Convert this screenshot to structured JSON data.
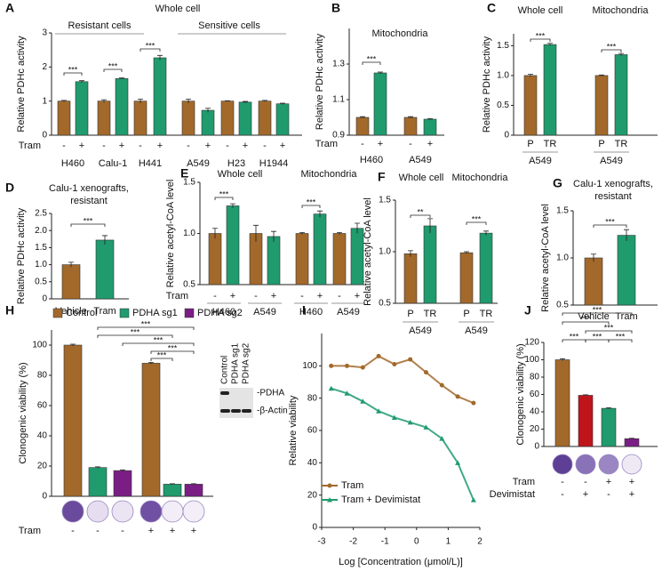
{
  "chart_data": [
    {
      "panel": "A",
      "type": "bar",
      "title": "Whole cell",
      "subtitles": [
        "Resistant cells",
        "Sensitive cells"
      ],
      "subtitle_colors": [
        "#1f9b6e",
        "#a2692b"
      ],
      "y_label": "Relative PDHc activity",
      "ylim": [
        0,
        3
      ],
      "yticks": [
        0,
        1,
        2,
        3
      ],
      "values": [
        1,
        1.57,
        1,
        1.66,
        1,
        2.27,
        1,
        0.73,
        1,
        0.97,
        1,
        0.92
      ],
      "errors": [
        0.02,
        0.03,
        0.04,
        0.02,
        0.06,
        0.07,
        0.06,
        0.06,
        0.01,
        0.02,
        0.02,
        0.02
      ],
      "colors": [
        "#a2692b",
        "#1f9b6e",
        "#a2692b",
        "#1f9b6e",
        "#a2692b",
        "#1f9b6e",
        "#a2692b",
        "#1f9b6e",
        "#a2692b",
        "#1f9b6e",
        "#a2692b",
        "#1f9b6e"
      ],
      "rows": [
        {
          "label": "Tram",
          "values": [
            "-",
            "+",
            "-",
            "+",
            "-",
            "+",
            "-",
            "+",
            "-",
            "+",
            "-",
            "+"
          ]
        }
      ],
      "groups": [
        "H460",
        "Calu-1",
        "H441",
        "A549",
        "H23",
        "H1944"
      ],
      "group_colors": [
        "#1f9b6e",
        "#1f9b6e",
        "#1f9b6e",
        "#a2692b",
        "#a2692b",
        "#a2692b"
      ],
      "annotations": [
        "***",
        "***",
        "***"
      ]
    },
    {
      "panel": "B",
      "type": "bar",
      "title": "Mitochondria",
      "y_label": "Relative PDHc activity",
      "ylim": [
        0.9,
        1.5
      ],
      "yticks": [
        0.9,
        1.1,
        1.3
      ],
      "values": [
        1,
        1.25,
        1,
        0.99
      ],
      "errors": [
        0.004,
        0.005,
        0.004,
        0.003
      ],
      "colors": [
        "#a2692b",
        "#1f9b6e",
        "#a2692b",
        "#1f9b6e"
      ],
      "rows": [
        {
          "label": "Tram",
          "values": [
            "-",
            "+",
            "-",
            "+"
          ]
        }
      ],
      "groups": [
        "H460",
        "A549"
      ],
      "group_colors": [
        "#1f9b6e",
        "#a2692b"
      ],
      "annotations": [
        "***"
      ]
    },
    {
      "panel": "C",
      "type": "bar",
      "titles": [
        "Whole cell",
        "Mitochondria"
      ],
      "y_label": "Relative PDHc activity",
      "ylim": [
        0,
        1.7
      ],
      "yticks": [
        0,
        0.5,
        {
          "value": 1,
          "label": "1.0"
        },
        1.5
      ],
      "values": [
        1,
        1.52,
        1,
        1.35
      ],
      "errors": [
        0.02,
        0.02,
        0.01,
        0.02
      ],
      "colors": [
        "#a2692b",
        "#1f9b6e",
        "#a2692b",
        "#1f9b6e"
      ],
      "categories": [
        "P",
        "TR",
        "P",
        "TR"
      ],
      "groups": [
        "A549",
        "A549"
      ],
      "group_colors": [
        "#a2692b",
        "#a2692b"
      ],
      "annotations": [
        "***",
        "***"
      ]
    },
    {
      "panel": "D",
      "type": "bar",
      "title": "Calu-1 xenografts,",
      "subtitles": [
        "resistant"
      ],
      "subtitle_colors": [
        "#1f9b6e"
      ],
      "y_label": "Relative PDHc activity",
      "ylim": [
        0,
        2.5
      ],
      "yticks": [
        0,
        0.5,
        {
          "value": 1,
          "label": "1.0"
        },
        1.5,
        {
          "value": 2,
          "label": "2.0"
        },
        2.5
      ],
      "values": [
        1,
        1.72
      ],
      "errors": [
        0.07,
        0.13
      ],
      "colors": [
        "#a2692b",
        "#1f9b6e"
      ],
      "categories": [
        "Vehicle",
        "Tram"
      ],
      "annotations": [
        "***"
      ]
    },
    {
      "panel": "E",
      "type": "bar",
      "titles": [
        "Whole cell",
        "Mitochondria"
      ],
      "y_label": "Relative acetyl-CoA level",
      "ylim": [
        0.5,
        1.5
      ],
      "yticks": [
        0.5,
        {
          "value": 1,
          "label": "1.0"
        },
        1.5
      ],
      "values": [
        1,
        1.27,
        1,
        0.97,
        1,
        1.19,
        1,
        1.05
      ],
      "errors": [
        0.05,
        0.02,
        0.08,
        0.05,
        0.01,
        0.03,
        0.01,
        0.05
      ],
      "colors": [
        "#a2692b",
        "#1f9b6e",
        "#a2692b",
        "#1f9b6e",
        "#a2692b",
        "#1f9b6e",
        "#a2692b",
        "#1f9b6e"
      ],
      "rows": [
        {
          "label": "Tram",
          "values": [
            "-",
            "+",
            "-",
            "+",
            "-",
            "+",
            "-",
            "+"
          ]
        }
      ],
      "groups": [
        "H460",
        "A549",
        "H460",
        "A549"
      ],
      "group_colors": [
        "#1f9b6e",
        "#a2692b",
        "#1f9b6e",
        "#a2692b"
      ],
      "annotations": [
        "***",
        "***"
      ]
    },
    {
      "panel": "F",
      "type": "bar",
      "titles": [
        "Whole cell",
        "Mitochondria"
      ],
      "y_label": "Relative acetyl-CoA level",
      "ylim": [
        0.5,
        1.5
      ],
      "yticks": [
        0.5,
        {
          "value": 1,
          "label": "1.0"
        },
        1.5
      ],
      "values": [
        0.98,
        1.25,
        0.99,
        1.18
      ],
      "errors": [
        0.03,
        0.07,
        0.01,
        0.02
      ],
      "colors": [
        "#a2692b",
        "#1f9b6e",
        "#a2692b",
        "#1f9b6e"
      ],
      "categories": [
        "P",
        "TR",
        "P",
        "TR"
      ],
      "groups": [
        "A549",
        "A549"
      ],
      "group_colors": [
        "#a2692b",
        "#a2692b"
      ],
      "annotations": [
        "**",
        "***"
      ]
    },
    {
      "panel": "G",
      "type": "bar",
      "title": "Calu-1 xenografts,",
      "subtitles": [
        "resistant"
      ],
      "subtitle_colors": [
        "#1f9b6e"
      ],
      "y_label": "Relative acetyl-CoA level",
      "ylim": [
        0.5,
        1.5
      ],
      "yticks": [
        0.5,
        {
          "value": 1,
          "label": "1.0"
        },
        1.5
      ],
      "values": [
        1,
        1.24
      ],
      "errors": [
        0.04,
        0.06
      ],
      "colors": [
        "#a2692b",
        "#1f9b6e"
      ],
      "categories": [
        "Vehicle",
        "Tram"
      ],
      "annotations": [
        "***"
      ]
    },
    {
      "panel": "H",
      "type": "bar",
      "legend": [
        {
          "name": "Control",
          "color": "#a2692b"
        },
        {
          "name": "PDHA sg1",
          "color": "#1f9b6e"
        },
        {
          "name": "PDHA sg2",
          "color": "#7a1e85"
        }
      ],
      "y_label": "Clonogenic viability (%)",
      "ylim": [
        0,
        110
      ],
      "yticks": [
        0,
        20,
        40,
        60,
        80,
        100
      ],
      "values": [
        100,
        19,
        17,
        88,
        8,
        8
      ],
      "errors": [
        0.6,
        0.5,
        0.5,
        0.6,
        0.3,
        0.3
      ],
      "colors": [
        "#a2692b",
        "#1f9b6e",
        "#7a1e85",
        "#a2692b",
        "#1f9b6e",
        "#7a1e85"
      ],
      "rows": [
        {
          "label": "Tram",
          "values": [
            "-",
            "-",
            "-",
            "+",
            "+",
            "+"
          ]
        }
      ],
      "blot": {
        "lanes": [
          "Control",
          "PDHA sg1",
          "PDHA sg2"
        ],
        "bands": [
          "-PDHA",
          "-β-Actin"
        ]
      },
      "annotations": [
        "***",
        "***",
        "***",
        "***",
        "***"
      ]
    },
    {
      "panel": "I",
      "type": "line",
      "x_label": "Log [Concentration (μmol/L)]",
      "y_label": "Relative viability",
      "xlim": [
        -3,
        2
      ],
      "xticks": [
        -3,
        -2,
        -1,
        0,
        1,
        2
      ],
      "ylim": [
        0,
        120
      ],
      "yticks": [
        0,
        20,
        40,
        60,
        80,
        100
      ],
      "x": [
        -2.7,
        -2.2,
        -1.7,
        -1.2,
        -0.7,
        -0.2,
        0.3,
        0.8,
        1.3,
        1.8
      ],
      "series": [
        {
          "name": "Tram",
          "color": "#a2692b",
          "values": [
            100,
            100,
            99,
            106,
            101,
            104,
            96,
            88,
            81,
            77
          ]
        },
        {
          "name": "Tram + Devimistat",
          "color": "#1f9b6e",
          "values": [
            86,
            83,
            78,
            72,
            68,
            65,
            62,
            55,
            40,
            17
          ]
        }
      ]
    },
    {
      "panel": "J",
      "type": "bar",
      "y_label": "Clonogenic viability (%)",
      "ylim": [
        0,
        120
      ],
      "yticks": [
        0,
        20,
        40,
        60,
        80,
        100,
        120
      ],
      "values": [
        100,
        59,
        44,
        9
      ],
      "errors": [
        1.2,
        0.6,
        0.6,
        0.4
      ],
      "colors": [
        "#a2692b",
        "#c0141c",
        "#1f9b6e",
        "#7a1e85"
      ],
      "rows": [
        {
          "label": "Tram",
          "values": [
            "-",
            "-",
            "+",
            "+"
          ]
        },
        {
          "label": "Devimistat",
          "values": [
            "-",
            "+",
            "-",
            "+"
          ]
        }
      ],
      "annotations": [
        "***",
        "***",
        "***",
        "***",
        "***",
        "***"
      ]
    }
  ]
}
